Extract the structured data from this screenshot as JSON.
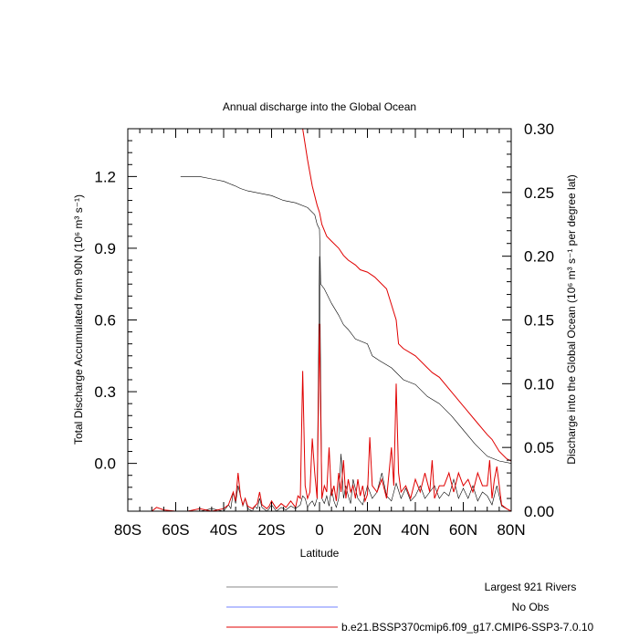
{
  "chart_data": {
    "type": "line",
    "title": "Annual discharge into the Global Ocean",
    "xlabel": "Latitude",
    "ylabel_left": "Total Discharge Accumulated from 90N (10⁶ m³ s⁻¹)",
    "ylabel_right": "Discharge into the Global Ocean (10⁶ m³ s⁻¹ per degree lat)",
    "xlim": [
      -80,
      80
    ],
    "ylim_left": [
      -0.2,
      1.4
    ],
    "ylim_right": [
      0.0,
      0.3
    ],
    "x_ticks": [
      -80,
      -60,
      -40,
      -20,
      0,
      20,
      40,
      60,
      80
    ],
    "x_tick_labels": [
      "80S",
      "60S",
      "40S",
      "20S",
      "0",
      "20N",
      "40N",
      "60N",
      "80N"
    ],
    "y_left_ticks": [
      0.0,
      0.3,
      0.6,
      0.9,
      1.2
    ],
    "y_left_tick_labels": [
      "0.0",
      "0.3",
      "0.6",
      "0.9",
      "1.2"
    ],
    "y_right_ticks": [
      0.0,
      0.05,
      0.1,
      0.15,
      0.2,
      0.25,
      0.3
    ],
    "y_right_tick_labels": [
      "0.00",
      "0.05",
      "0.10",
      "0.15",
      "0.20",
      "0.25",
      "0.30"
    ],
    "legend_position": "bottom",
    "series": [
      {
        "name": "Largest 921 Rivers",
        "color": "#000000",
        "axis": "left",
        "x": [
          -58,
          -50,
          -45,
          -40,
          -35,
          -33,
          -30,
          -25,
          -20,
          -15,
          -10,
          -5,
          -2,
          -1,
          0,
          0.5,
          2,
          5,
          8,
          10,
          12,
          15,
          20,
          22,
          25,
          30,
          35,
          40,
          45,
          50,
          55,
          60,
          65,
          70,
          75,
          80
        ],
        "y": [
          1.2,
          1.2,
          1.19,
          1.18,
          1.16,
          1.15,
          1.14,
          1.13,
          1.12,
          1.1,
          1.09,
          1.07,
          1.04,
          1.0,
          0.98,
          0.75,
          0.73,
          0.67,
          0.62,
          0.58,
          0.56,
          0.52,
          0.5,
          0.45,
          0.43,
          0.4,
          0.35,
          0.33,
          0.28,
          0.25,
          0.2,
          0.14,
          0.08,
          0.03,
          0.01,
          0.0
        ]
      },
      {
        "name": "No Obs",
        "color": "#4f5fff",
        "axis": "left",
        "x": [],
        "y": []
      },
      {
        "name": "b.e21.BSSP370cmip6.f09_g17.CMIP6-SSP3-7.0.10",
        "color": "#e00000",
        "axis": "left",
        "x": [
          -7,
          -5,
          -3,
          -1,
          0,
          1,
          3,
          5,
          8,
          10,
          12,
          15,
          17,
          20,
          23,
          25,
          28,
          32,
          33,
          35,
          40,
          45,
          47,
          50,
          55,
          60,
          65,
          70,
          72,
          75,
          78,
          80
        ],
        "y": [
          1.4,
          1.27,
          1.16,
          1.08,
          1.05,
          1.0,
          0.95,
          0.93,
          0.9,
          0.87,
          0.85,
          0.83,
          0.81,
          0.8,
          0.78,
          0.76,
          0.73,
          0.6,
          0.5,
          0.48,
          0.45,
          0.4,
          0.38,
          0.36,
          0.3,
          0.24,
          0.18,
          0.12,
          0.1,
          0.05,
          0.02,
          0.01
        ]
      },
      {
        "name": "Largest 921 Rivers (per degree lat)",
        "color": "#000000",
        "axis": "right",
        "x": [
          -80,
          -70,
          -60,
          -55,
          -50,
          -45,
          -40,
          -38,
          -37,
          -36,
          -35,
          -34,
          -33,
          -32,
          -31,
          -30,
          -28,
          -27,
          -26,
          -25,
          -24,
          -22,
          -21,
          -20,
          -18,
          -16,
          -14,
          -12,
          -10,
          -8,
          -7,
          -6,
          -5,
          -4,
          -3,
          -2,
          -1,
          0,
          1,
          2,
          3,
          4,
          5,
          6,
          7,
          8,
          9,
          10,
          11,
          12,
          13,
          14,
          16,
          18,
          20,
          22,
          24,
          26,
          28,
          30,
          32,
          34,
          36,
          38,
          40,
          42,
          44,
          46,
          48,
          50,
          52,
          54,
          56,
          58,
          60,
          62,
          64,
          66,
          68,
          70,
          72,
          74,
          76,
          78,
          80
        ],
        "y": [
          0,
          0,
          0,
          0,
          0,
          0.002,
          0,
          0.005,
          0.002,
          0.015,
          0.006,
          0.02,
          0.012,
          0.004,
          0.01,
          0.002,
          0,
          0.004,
          0.002,
          0.01,
          0.003,
          0,
          0.002,
          0.005,
          0,
          0.003,
          0.001,
          0.004,
          0.002,
          0.005,
          0.012,
          0.01,
          0.003,
          0.006,
          0.008,
          0.004,
          0.01,
          0.2,
          0.01,
          0.006,
          0.012,
          0.004,
          0.018,
          0.008,
          0.003,
          0.01,
          0.045,
          0.01,
          0.02,
          0.012,
          0.006,
          0.025,
          0.01,
          0.005,
          0.02,
          0.01,
          0.015,
          0.03,
          0.012,
          0.008,
          0.022,
          0.01,
          0.018,
          0.008,
          0.012,
          0.02,
          0.01,
          0.015,
          0.02,
          0.01,
          0.015,
          0.012,
          0.025,
          0.01,
          0.018,
          0.01,
          0.02,
          0.008,
          0.015,
          0.012,
          0.005,
          0.02,
          0.004,
          0.002,
          0.0
        ]
      },
      {
        "name": "b.e21.BSSP370cmip6.f09_g17.CMIP6-SSP3-7.0.10 (per degree lat)",
        "color": "#e00000",
        "axis": "right",
        "x": [
          -80,
          -70,
          -68,
          -65,
          -60,
          -55,
          -50,
          -45,
          -40,
          -38,
          -36,
          -35,
          -34,
          -33,
          -32,
          -31,
          -30,
          -28,
          -26,
          -25,
          -24,
          -22,
          -21,
          -20,
          -18,
          -16,
          -14,
          -12,
          -10,
          -9,
          -8,
          -7,
          -6,
          -5,
          -4,
          -3,
          -2,
          -1,
          0,
          1,
          2,
          3,
          4,
          5,
          6,
          7,
          8,
          9,
          10,
          11,
          12,
          13,
          14,
          15,
          16,
          17,
          18,
          19,
          20,
          21,
          22,
          24,
          26,
          28,
          30,
          31,
          32,
          33,
          34,
          36,
          38,
          40,
          42,
          44,
          46,
          47,
          48,
          50,
          52,
          54,
          56,
          58,
          60,
          62,
          64,
          66,
          68,
          70,
          71,
          72,
          73,
          74,
          76,
          78,
          80
        ],
        "y": [
          0,
          0,
          0.003,
          0.001,
          0,
          0,
          0.002,
          0,
          0.002,
          0.005,
          0.015,
          0.008,
          0.03,
          0.012,
          0.005,
          0.01,
          0.004,
          0.002,
          0.006,
          0.015,
          0.005,
          0.002,
          0.004,
          0.008,
          0.002,
          0.006,
          0.003,
          0.008,
          0.003,
          0.012,
          0.01,
          0.11,
          0.02,
          0.01,
          0.015,
          0.057,
          0.03,
          0.01,
          0.147,
          0.01,
          0.02,
          0.015,
          0.05,
          0.012,
          0.02,
          0.008,
          0.03,
          0.015,
          0.04,
          0.01,
          0.025,
          0.015,
          0.02,
          0.01,
          0.025,
          0.012,
          0.02,
          0.008,
          0.013,
          0.058,
          0.02,
          0.015,
          0.025,
          0.01,
          0.05,
          0.02,
          0.1,
          0.03,
          0.015,
          0.02,
          0.01,
          0.025,
          0.015,
          0.03,
          0.015,
          0.04,
          0.01,
          0.02,
          0.02,
          0.03,
          0.015,
          0.03,
          0.02,
          0.025,
          0.015,
          0.03,
          0.02,
          0.02,
          0.04,
          0.01,
          0.025,
          0.035,
          0.005,
          0.002,
          0.0
        ]
      }
    ]
  },
  "legend": [
    {
      "label": "Largest 921 Rivers",
      "color": "#888888"
    },
    {
      "label": "No Obs",
      "color": "#7080ff"
    },
    {
      "label": "b.e21.BSSP370cmip6.f09_g17.CMIP6-SSP3-7.0.10",
      "color": "#e00000"
    }
  ]
}
